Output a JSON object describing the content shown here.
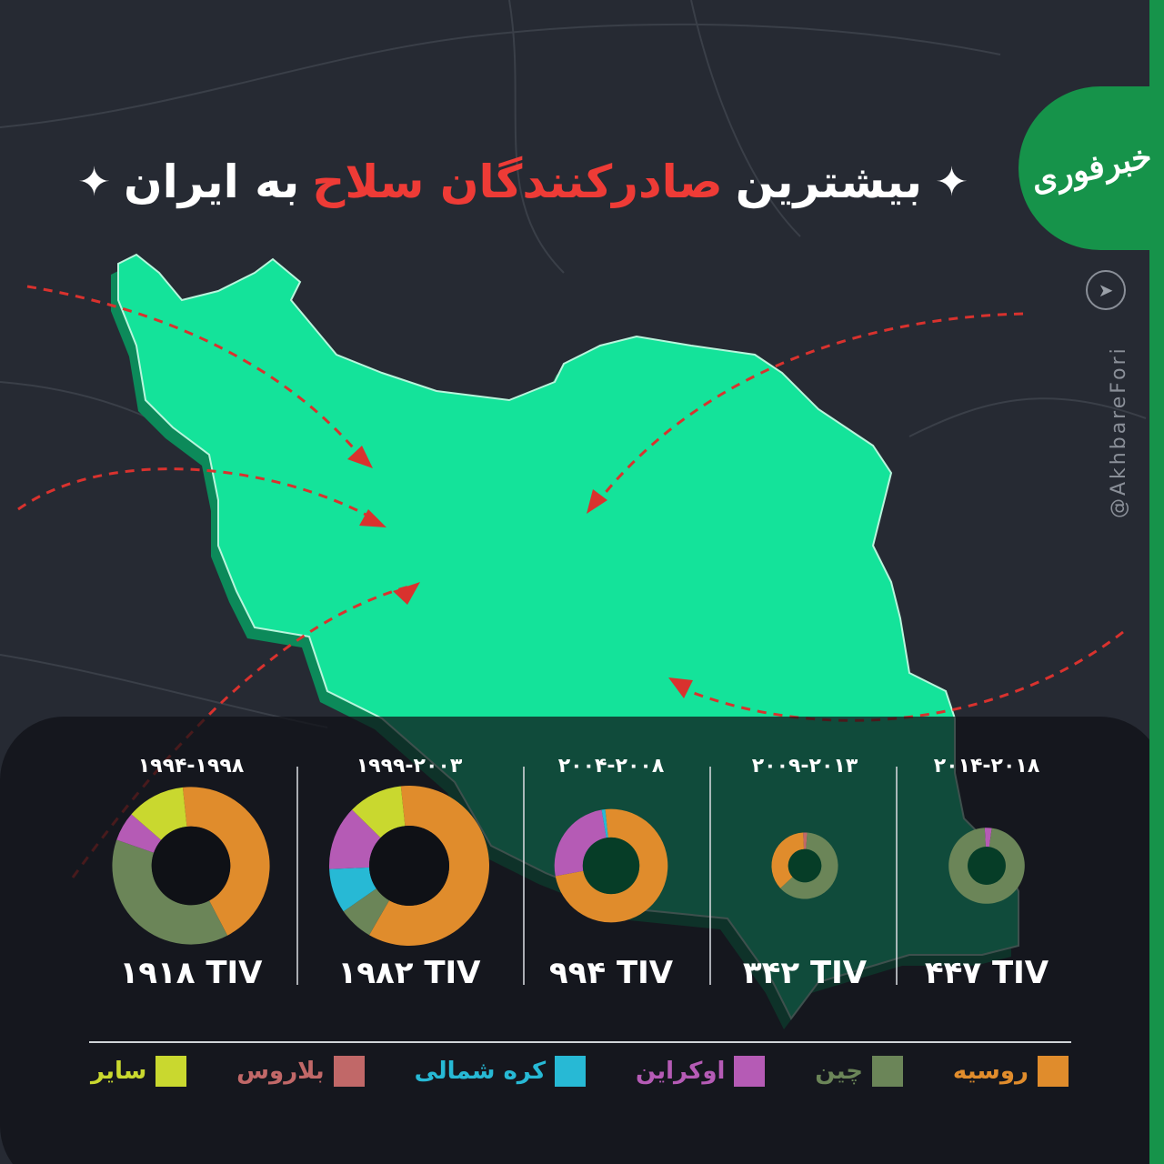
{
  "title": {
    "part1": "بیشترین",
    "part2": "صادرکنندگان سلاح",
    "part3": "به ایران",
    "star": "✦"
  },
  "brand": {
    "logo": "خبرفوری",
    "handle": "@AkhbareFori",
    "telegram_icon": "telegram-icon"
  },
  "colors": {
    "russia": "#e08c2c",
    "china": "#6b8558",
    "ukraine": "#b55bb5",
    "north_korea": "#27b9d5",
    "belarus": "#c16868",
    "other": "#c9d82f",
    "accent_red": "#ee3b36",
    "map": "#14e39a"
  },
  "chart_data": {
    "type": "pie",
    "variant": "donut",
    "unit": "TIV",
    "legend": [
      {
        "key": "russia",
        "label": "روسیه"
      },
      {
        "key": "china",
        "label": "چین"
      },
      {
        "key": "ukraine",
        "label": "اوکراین"
      },
      {
        "key": "north_korea",
        "label": "کره شمالی"
      },
      {
        "key": "belarus",
        "label": "بلاروس"
      },
      {
        "key": "other",
        "label": "سایر"
      }
    ],
    "charts": [
      {
        "period": "۱۹۹۴-۱۹۹۸",
        "total": 1918,
        "total_label": "۱۹۱۸ TIV",
        "slices": [
          {
            "key": "russia",
            "value": 44
          },
          {
            "key": "china",
            "value": 38
          },
          {
            "key": "ukraine",
            "value": 6
          },
          {
            "key": "other",
            "value": 12
          }
        ]
      },
      {
        "period": "۱۹۹۹-۲۰۰۳",
        "total": 1982,
        "total_label": "۱۹۸۲ TIV",
        "slices": [
          {
            "key": "russia",
            "value": 60
          },
          {
            "key": "china",
            "value": 7
          },
          {
            "key": "north_korea",
            "value": 9
          },
          {
            "key": "ukraine",
            "value": 13
          },
          {
            "key": "other",
            "value": 11
          }
        ]
      },
      {
        "period": "۲۰۰۴-۲۰۰۸",
        "total": 994,
        "total_label": "۹۹۴ TIV",
        "slices": [
          {
            "key": "russia",
            "value": 73
          },
          {
            "key": "ukraine",
            "value": 25
          },
          {
            "key": "north_korea",
            "value": 1
          }
        ]
      },
      {
        "period": "۲۰۰۹-۲۰۱۳",
        "total": 342,
        "total_label": "۳۴۲ TIV",
        "slices": [
          {
            "key": "belarus",
            "value": 2
          },
          {
            "key": "china",
            "value": 62
          },
          {
            "key": "russia",
            "value": 36
          }
        ]
      },
      {
        "period": "۲۰۱۴-۲۰۱۸",
        "total": 447,
        "total_label": "۴۴۷ TIV",
        "slices": [
          {
            "key": "ukraine",
            "value": 3
          },
          {
            "key": "china",
            "value": 97
          }
        ]
      }
    ]
  }
}
